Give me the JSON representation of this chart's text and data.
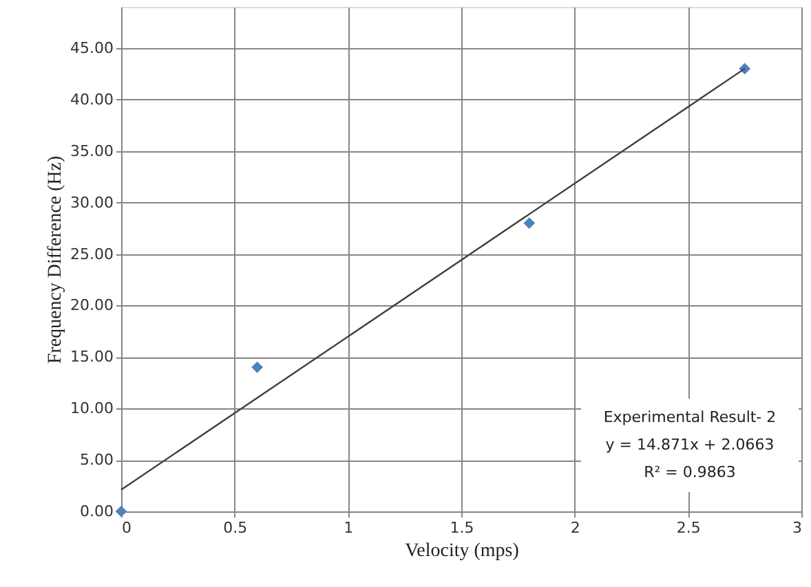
{
  "chart_data": {
    "type": "scatter",
    "xlabel": "Velocity (mps)",
    "ylabel": "Frequency  Difference  (Hz)",
    "xlim": [
      0,
      3
    ],
    "xticks": [
      0,
      0.5,
      1,
      1.5,
      2,
      2.5,
      3
    ],
    "ylim": [
      0,
      49
    ],
    "yticks": [
      {
        "value": 0,
        "label": "0.00"
      },
      {
        "value": 5,
        "label": "5.00"
      },
      {
        "value": 10,
        "label": "10.00"
      },
      {
        "value": 15,
        "label": "15.00"
      },
      {
        "value": 20,
        "label": "20.00"
      },
      {
        "value": 25,
        "label": "25.00"
      },
      {
        "value": 30,
        "label": "30.00"
      },
      {
        "value": 35,
        "label": "35.00"
      },
      {
        "value": 40,
        "label": "40.00"
      },
      {
        "value": 45,
        "label": "45.00"
      }
    ],
    "grid": true,
    "marker": "diamond",
    "series": [
      {
        "type": "scatter",
        "color": "#4f81bd",
        "x": [
          0,
          0.6,
          1.8,
          2.75
        ],
        "values": [
          0,
          14,
          28,
          43
        ]
      },
      {
        "type": "line",
        "color": "#404040",
        "marker": "none",
        "line_style": "solid",
        "x": [
          0,
          2.75
        ],
        "values": [
          2.1,
          43
        ]
      }
    ],
    "annotations": [
      "Experimental Result- 2",
      "y = 14.871x + 2.0663",
      "R² = 0.9863"
    ]
  }
}
